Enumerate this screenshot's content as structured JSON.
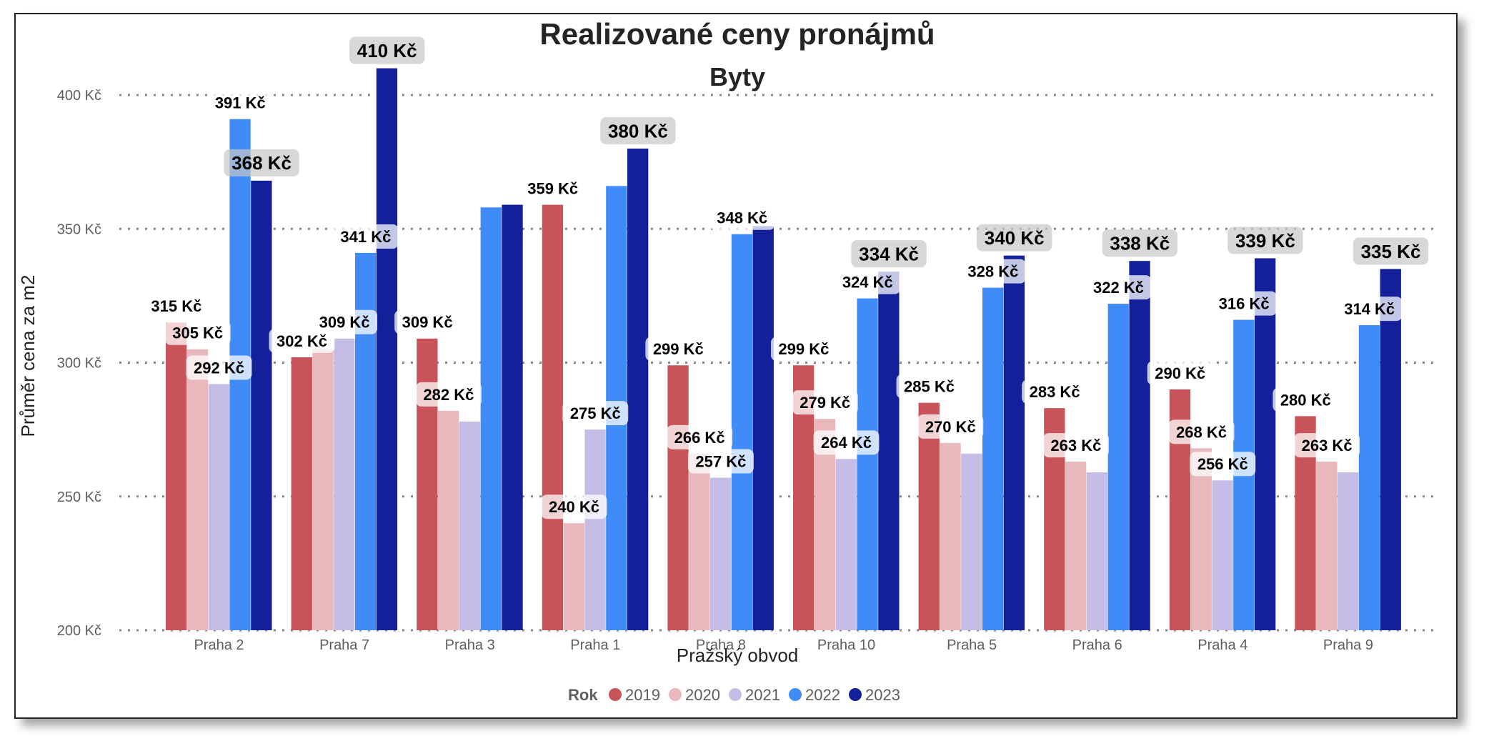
{
  "chart_data": {
    "type": "bar",
    "title": "Realizované ceny pronájmů",
    "subtitle": "Byty",
    "xlabel": "Pražský obvod",
    "ylabel": "Průměr cena za m2",
    "ylim": [
      200,
      410
    ],
    "yticks": [
      200,
      250,
      300,
      350,
      400
    ],
    "ytick_labels": [
      "200 Kč",
      "250 Kč",
      "300 Kč",
      "350 Kč",
      "400 Kč"
    ],
    "grid": true,
    "legend_title": "Rok",
    "legend_position": "bottom-center",
    "categories": [
      "Praha 2",
      "Praha 7",
      "Praha 3",
      "Praha 1",
      "Praha 8",
      "Praha 10",
      "Praha 5",
      "Praha 6",
      "Praha 4",
      "Praha 9"
    ],
    "series": [
      {
        "name": "2019",
        "color": "#c9535a",
        "values": [
          315,
          302,
          309,
          359,
          299,
          299,
          285,
          283,
          290,
          280
        ],
        "labels": [
          "315 Kč",
          "302 Kč",
          "309 Kč",
          "359 Kč",
          "299 Kč",
          "299 Kč",
          "285 Kč",
          "283 Kč",
          "290 Kč",
          "280 Kč"
        ]
      },
      {
        "name": "2020",
        "color": "#e8b8bd",
        "values": [
          305,
          305,
          282,
          240,
          266,
          279,
          270,
          263,
          268,
          263
        ],
        "labels": [
          "305 Kč",
          "",
          "282 Kč",
          "240 Kč",
          "266 Kč",
          "279 Kč",
          "270 Kč",
          "263 Kč",
          "268 Kč",
          "263 Kč"
        ]
      },
      {
        "name": "2021",
        "color": "#c5bde6",
        "values": [
          292,
          309,
          278,
          275,
          257,
          264,
          266,
          259,
          256,
          259
        ],
        "labels": [
          "292 Kč",
          "309 Kč",
          "",
          "275 Kč",
          "257 Kč",
          "264 Kč",
          "",
          "",
          "256 Kč",
          ""
        ]
      },
      {
        "name": "2022",
        "color": "#3f8bf7",
        "values": [
          391,
          341,
          358,
          366,
          348,
          324,
          328,
          322,
          316,
          314
        ],
        "labels": [
          "391 Kč",
          "341 Kč",
          "",
          "",
          "348 Kč",
          "324 Kč",
          "328 Kč",
          "322 Kč",
          "316 Kč",
          "314 Kč"
        ]
      },
      {
        "name": "2023",
        "color": "#13209a",
        "values": [
          368,
          410,
          359,
          380,
          351,
          334,
          340,
          338,
          339,
          335
        ],
        "labels": [
          "368 Kč",
          "410 Kč",
          "",
          "380 Kč",
          "",
          "334 Kč",
          "340 Kč",
          "338 Kč",
          "339 Kč",
          "335 Kč"
        ]
      }
    ]
  }
}
